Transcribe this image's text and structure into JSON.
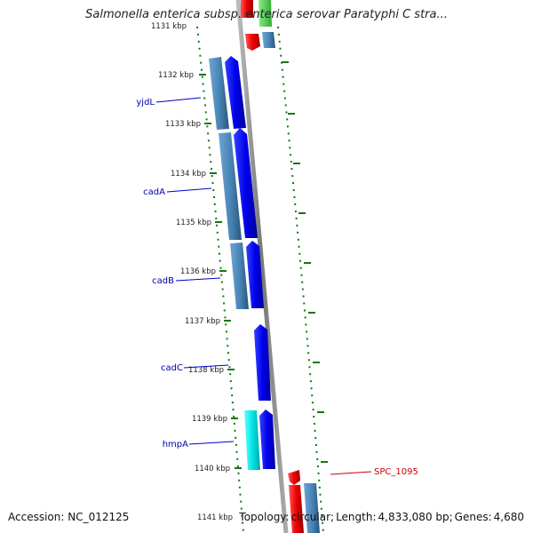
{
  "title": "Salmonella enterica subsp. enterica serovar Paratyphi C stra...",
  "footer": {
    "accession_label": "Accession:",
    "accession": "NC_012125",
    "topology_label": "Topology:",
    "topology": "circular",
    "length_label": "Length:",
    "length": "4,833,080 bp",
    "genes_label": "Genes:",
    "genes": "4,680"
  },
  "ticks": [
    "1131 kbp",
    "1132 kbp",
    "1133 kbp",
    "1134 kbp",
    "1135 kbp",
    "1136 kbp",
    "1137 kbp",
    "1138 kbp",
    "1139 kbp",
    "1140 kbp",
    "1141 kbp"
  ],
  "gene_labels": [
    "yjdL",
    "cadA",
    "cadB",
    "cadC",
    "hmpA",
    "SPC_1095"
  ],
  "colors": {
    "blue_gene": "#0000ee",
    "steel_blue_feature": "#4682b4",
    "cyan_feature": "#00e5e5",
    "red_gene": "#ee0000",
    "green_feature": "#33cc33",
    "backbone": "#888888",
    "tick_marks": "#117711",
    "blue_label": "#0000aa",
    "red_label": "#cc0000"
  }
}
